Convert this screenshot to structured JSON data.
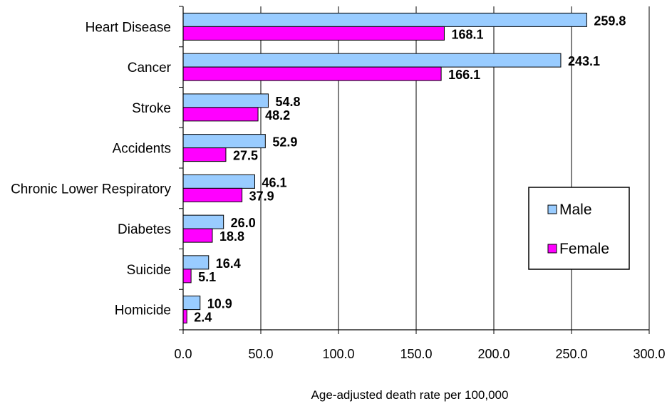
{
  "chart_data": {
    "type": "bar",
    "orientation": "horizontal",
    "title": "",
    "xlabel": "Age-adjusted death rate per 100,000",
    "ylabel": "",
    "xlim": [
      0,
      300
    ],
    "x_ticks": [
      "0.0",
      "50.0",
      "100.0",
      "150.0",
      "200.0",
      "250.0",
      "300.0"
    ],
    "grid": "vertical",
    "legend_position": "right",
    "categories": [
      "Heart Disease",
      "Cancer",
      "Stroke",
      "Accidents",
      "Chronic Lower Respiratory",
      "Diabetes",
      "Suicide",
      "Homicide"
    ],
    "series": [
      {
        "name": "Male",
        "color": "#99ccff",
        "values": [
          259.8,
          243.1,
          54.8,
          52.9,
          46.1,
          26.0,
          16.4,
          10.9
        ],
        "labels": [
          "259.8",
          "243.1",
          "54.8",
          "52.9",
          "46.1",
          "26.0",
          "16.4",
          "10.9"
        ]
      },
      {
        "name": "Female",
        "color": "#ff00ff",
        "values": [
          168.1,
          166.1,
          48.2,
          27.5,
          37.9,
          18.8,
          5.1,
          2.4
        ],
        "labels": [
          "168.1",
          "166.1",
          "48.2",
          "27.5",
          "37.9",
          "18.8",
          "5.1",
          "2.4"
        ]
      }
    ]
  }
}
